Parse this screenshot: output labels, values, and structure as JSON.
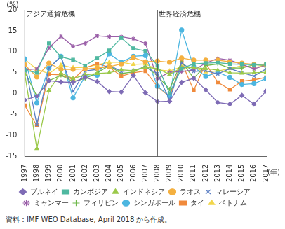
{
  "chart_data": {
    "type": "line",
    "y_label": "(%)",
    "x_label": "(年)",
    "source": "資料：IMF WEO Database, April 2018 から作成。",
    "annotations": [
      {
        "text": "アジア通貨危機",
        "x": "1997"
      },
      {
        "text": "世界経済危機",
        "x": "2008"
      }
    ],
    "categories": [
      "1997",
      "1998",
      "1999",
      "2000",
      "2001",
      "2002",
      "2003",
      "2004",
      "2005",
      "2006",
      "2007",
      "2008",
      "2009",
      "2010",
      "2011",
      "2012",
      "2013",
      "2014",
      "2015",
      "2016",
      "2017"
    ],
    "ylim": [
      -15,
      20
    ],
    "yticks": [
      -15,
      -10,
      -5,
      0,
      5,
      10,
      15,
      20
    ],
    "grid": false,
    "legend": "bottom",
    "series": [
      {
        "name": "ブルネイ",
        "color": "#7e6bb5",
        "marker": "diamond",
        "values": [
          -1.5,
          -0.6,
          3.1,
          2.8,
          2.7,
          3.9,
          2.9,
          0.5,
          0.4,
          4.4,
          0.2,
          -1.9,
          -1.8,
          2.7,
          3.7,
          0.9,
          -2.1,
          -2.5,
          -0.4,
          -2.5,
          0.6
        ]
      },
      {
        "name": "カンボジア",
        "color": "#4fb8a0",
        "marker": "square",
        "values": [
          5.6,
          5.0,
          12.0,
          8.8,
          8.1,
          6.7,
          8.5,
          10.3,
          13.3,
          10.8,
          10.2,
          6.7,
          0.1,
          6.0,
          7.1,
          7.3,
          7.4,
          7.1,
          7.0,
          6.9,
          7.0
        ]
      },
      {
        "name": "インドネシア",
        "color": "#9bc94a",
        "marker": "triangle",
        "values": [
          4.7,
          -13.1,
          0.8,
          4.9,
          3.6,
          4.5,
          4.8,
          5.0,
          5.7,
          5.5,
          6.3,
          6.0,
          4.6,
          6.2,
          6.2,
          6.0,
          5.6,
          5.0,
          4.9,
          5.0,
          5.1
        ]
      },
      {
        "name": "ラオス",
        "color": "#f4b040",
        "marker": "circle",
        "values": [
          6.9,
          4.0,
          7.3,
          5.8,
          5.8,
          5.9,
          6.1,
          6.4,
          7.1,
          8.6,
          7.6,
          7.8,
          7.5,
          8.5,
          8.0,
          8.0,
          8.0,
          7.6,
          7.3,
          7.0,
          6.9
        ]
      },
      {
        "name": "マレーシア",
        "color": "#5b7fc4",
        "marker": "x",
        "values": [
          7.3,
          -7.4,
          6.1,
          8.9,
          0.5,
          5.4,
          5.8,
          6.8,
          5.3,
          5.6,
          6.3,
          4.8,
          -1.5,
          7.4,
          5.3,
          5.5,
          4.7,
          6.0,
          5.0,
          4.2,
          5.9
        ]
      },
      {
        "name": "ミャンマー",
        "color": "#9a5fa8",
        "marker": "star",
        "values": [
          5.7,
          5.9,
          10.9,
          13.7,
          11.3,
          12.0,
          13.8,
          13.6,
          13.6,
          13.1,
          12.0,
          3.6,
          5.1,
          5.3,
          5.6,
          7.3,
          8.4,
          8.0,
          7.0,
          5.9,
          6.8
        ]
      },
      {
        "name": "フィリピン",
        "color": "#6fb84a",
        "marker": "plus",
        "values": [
          5.2,
          -0.6,
          3.1,
          4.4,
          2.9,
          3.6,
          5.0,
          6.7,
          4.8,
          5.2,
          6.6,
          4.2,
          1.1,
          7.6,
          3.7,
          6.7,
          7.1,
          6.1,
          6.1,
          6.9,
          6.7
        ]
      },
      {
        "name": "シンガポール",
        "color": "#4cb6e0",
        "marker": "circle",
        "values": [
          8.3,
          -2.2,
          6.1,
          8.9,
          -1.0,
          4.2,
          4.4,
          9.5,
          7.5,
          8.9,
          9.1,
          1.8,
          -0.6,
          15.2,
          6.4,
          4.1,
          5.1,
          3.9,
          2.2,
          2.4,
          3.6
        ]
      },
      {
        "name": "タイ",
        "color": "#f08a3c",
        "marker": "square",
        "values": [
          -2.8,
          -7.6,
          4.6,
          4.5,
          3.4,
          6.1,
          7.2,
          6.3,
          4.2,
          5.0,
          5.4,
          1.7,
          -0.7,
          7.5,
          0.8,
          7.2,
          2.7,
          1.0,
          3.0,
          3.3,
          3.9
        ]
      },
      {
        "name": "ベトナム",
        "color": "#f2d64b",
        "marker": "triangle",
        "values": [
          8.2,
          5.8,
          4.8,
          6.8,
          6.2,
          6.3,
          6.9,
          7.5,
          7.5,
          7.0,
          7.1,
          5.7,
          5.4,
          6.4,
          6.2,
          5.2,
          5.4,
          6.0,
          6.7,
          6.2,
          6.8
        ]
      }
    ]
  }
}
